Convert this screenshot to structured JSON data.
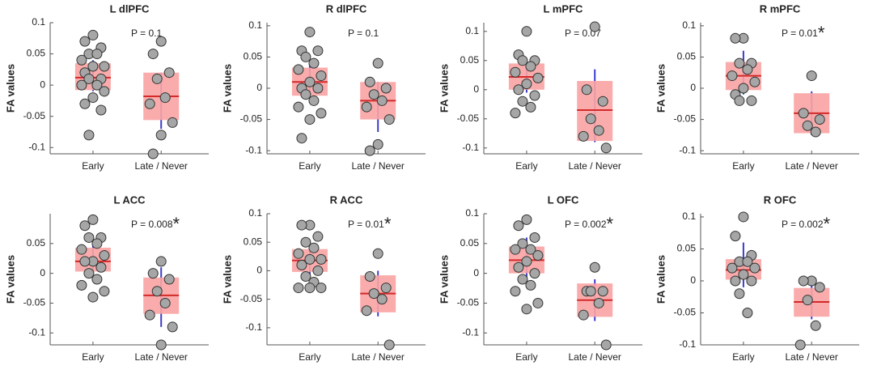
{
  "chart_data": [
    {
      "type": "box",
      "title": "L dlPFC",
      "annotation": "P = 0.1",
      "ylabel": "FA values",
      "categories": [
        "Early",
        "Late / Never"
      ],
      "ylim": [
        -0.11,
        0.1
      ],
      "yticks": [
        0.1,
        0.05,
        0,
        -0.05,
        -0.1
      ],
      "box_color": "#f9a3a3",
      "line_color": "#d42a2a",
      "whisker_color": "#3c3ccc",
      "point_color": "#a6a6a6",
      "groups": [
        {
          "center": 0.012,
          "low": -0.008,
          "high": 0.035,
          "whisker_low": -0.01,
          "whisker_high": 0.04,
          "points": [
            0.08,
            0.07,
            0.06,
            0.05,
            0.05,
            0.04,
            0.03,
            0.03,
            0.02,
            0.01,
            0.01,
            0,
            0,
            -0.01,
            -0.02,
            -0.03,
            -0.04,
            -0.08
          ]
        },
        {
          "center": -0.018,
          "low": -0.056,
          "high": 0.02,
          "whisker_low": -0.07,
          "whisker_high": 0.02,
          "points": [
            0.07,
            0.05,
            0.02,
            0.01,
            -0.02,
            -0.03,
            -0.06,
            -0.08,
            -0.11
          ]
        }
      ]
    },
    {
      "type": "box",
      "title": "R dlPFC",
      "annotation": "P = 0.1",
      "ylabel": "FA values",
      "categories": [
        "Early",
        "Late / Never"
      ],
      "ylim": [
        -0.105,
        0.105
      ],
      "yticks": [
        0.1,
        0.05,
        0,
        -0.05,
        -0.1
      ],
      "box_color": "#f9a3a3",
      "line_color": "#d42a2a",
      "whisker_color": "#3c3ccc",
      "point_color": "#a6a6a6",
      "groups": [
        {
          "center": 0.01,
          "low": -0.012,
          "high": 0.033,
          "whisker_low": -0.02,
          "whisker_high": 0.04,
          "points": [
            0.09,
            0.06,
            0.06,
            0.05,
            0.04,
            0.03,
            0.02,
            0.01,
            0,
            0,
            -0.01,
            -0.02,
            -0.03,
            -0.04,
            -0.05,
            -0.08
          ]
        },
        {
          "center": -0.02,
          "low": -0.05,
          "high": 0.01,
          "whisker_low": -0.07,
          "whisker_high": 0.01,
          "points": [
            0.04,
            0.01,
            0,
            -0.01,
            -0.02,
            -0.03,
            -0.05,
            -0.09,
            -0.1
          ]
        }
      ]
    },
    {
      "type": "box",
      "title": "L mPFC",
      "annotation": "P = 0.07",
      "ylabel": "FA values",
      "categories": [
        "Early",
        "Late / Never"
      ],
      "ylim": [
        -0.11,
        0.115
      ],
      "yticks": [
        0.1,
        0.05,
        0,
        -0.05,
        -0.1
      ],
      "box_color": "#f9a3a3",
      "line_color": "#d42a2a",
      "whisker_color": "#3c3ccc",
      "point_color": "#a6a6a6",
      "groups": [
        {
          "center": 0.022,
          "low": 0,
          "high": 0.045,
          "whisker_low": -0.005,
          "whisker_high": 0.05,
          "points": [
            0.1,
            0.06,
            0.05,
            0.05,
            0.04,
            0.03,
            0.02,
            0.01,
            0,
            -0.01,
            -0.02,
            -0.03,
            -0.04
          ]
        },
        {
          "center": -0.035,
          "low": -0.088,
          "high": 0.015,
          "whisker_low": -0.09,
          "whisker_high": 0.035,
          "points": [
            0.108,
            0,
            -0.02,
            -0.05,
            -0.07,
            -0.08,
            -0.1
          ]
        }
      ]
    },
    {
      "type": "box",
      "title": "R mPFC",
      "annotation": "P = 0.01",
      "marker": "*",
      "ylabel": "FA values",
      "categories": [
        "Early",
        "Late / Never"
      ],
      "ylim": [
        -0.105,
        0.105
      ],
      "yticks": [
        0.1,
        0.05,
        0,
        -0.05,
        -0.1
      ],
      "box_color": "#f9a3a3",
      "line_color": "#d42a2a",
      "whisker_color": "#3c3ccc",
      "point_color": "#a6a6a6",
      "groups": [
        {
          "center": 0.02,
          "low": -0.003,
          "high": 0.042,
          "whisker_low": -0.01,
          "whisker_high": 0.06,
          "points": [
            0.08,
            0.08,
            0.04,
            0.04,
            0.03,
            0.02,
            0.01,
            0,
            -0.01,
            -0.02,
            -0.02
          ]
        },
        {
          "center": -0.04,
          "low": -0.072,
          "high": -0.008,
          "whisker_low": -0.075,
          "whisker_high": -0.005,
          "points": [
            0.02,
            -0.04,
            -0.05,
            -0.06,
            -0.07
          ]
        }
      ]
    },
    {
      "type": "box",
      "title": "L ACC",
      "annotation": "P = 0.008",
      "marker": "*",
      "ylabel": "FA values",
      "categories": [
        "Early",
        "Late / Never"
      ],
      "ylim": [
        -0.12,
        0.1
      ],
      "yticks": [
        0.05,
        0,
        -0.05,
        -0.1
      ],
      "box_color": "#f9a3a3",
      "line_color": "#d42a2a",
      "whisker_color": "#3c3ccc",
      "point_color": "#a6a6a6",
      "groups": [
        {
          "center": 0.02,
          "low": 0.003,
          "high": 0.043,
          "whisker_low": 0,
          "whisker_high": 0.05,
          "points": [
            0.09,
            0.08,
            0.06,
            0.06,
            0.05,
            0.04,
            0.03,
            0.02,
            0.02,
            0.01,
            0,
            -0.01,
            -0.02,
            -0.03,
            -0.04
          ]
        },
        {
          "center": -0.037,
          "low": -0.068,
          "high": -0.007,
          "whisker_low": -0.09,
          "whisker_high": 0.01,
          "points": [
            0.02,
            0,
            -0.01,
            -0.03,
            -0.05,
            -0.07,
            -0.09,
            -0.12
          ]
        }
      ]
    },
    {
      "type": "box",
      "title": "R ACC",
      "annotation": "P = 0.01",
      "marker": "*",
      "ylabel": "FA values",
      "categories": [
        "Early",
        "Late / Never"
      ],
      "ylim": [
        -0.13,
        0.1
      ],
      "yticks": [
        0.1,
        0.05,
        0,
        -0.05,
        -0.1
      ],
      "box_color": "#f9a3a3",
      "line_color": "#d42a2a",
      "whisker_color": "#3c3ccc",
      "point_color": "#a6a6a6",
      "groups": [
        {
          "center": 0.018,
          "low": -0.002,
          "high": 0.038,
          "whisker_low": -0.01,
          "whisker_high": 0.05,
          "points": [
            0.08,
            0.08,
            0.06,
            0.05,
            0.04,
            0.03,
            0.02,
            0.02,
            0.01,
            0,
            -0.01,
            -0.02,
            -0.03,
            -0.03,
            -0.03
          ]
        },
        {
          "center": -0.04,
          "low": -0.073,
          "high": -0.008,
          "whisker_low": -0.08,
          "whisker_high": 0,
          "points": [
            0.03,
            -0.01,
            -0.03,
            -0.04,
            -0.05,
            -0.07,
            -0.13
          ]
        }
      ]
    },
    {
      "type": "box",
      "title": "L OFC",
      "annotation": "P = 0.002",
      "marker": "*",
      "ylabel": "FA values",
      "categories": [
        "Early",
        "Late / Never"
      ],
      "ylim": [
        -0.12,
        0.1
      ],
      "yticks": [
        0.1,
        0.05,
        0,
        -0.05,
        -0.1
      ],
      "box_color": "#f9a3a3",
      "line_color": "#d42a2a",
      "whisker_color": "#3c3ccc",
      "point_color": "#a6a6a6",
      "groups": [
        {
          "center": 0.022,
          "low": 0,
          "high": 0.045,
          "whisker_low": -0.02,
          "whisker_high": 0.06,
          "points": [
            0.09,
            0.08,
            0.06,
            0.05,
            0.04,
            0.04,
            0.03,
            0.02,
            0.01,
            0,
            -0.01,
            -0.02,
            -0.03,
            -0.05,
            -0.06
          ]
        },
        {
          "center": -0.045,
          "low": -0.073,
          "high": -0.017,
          "whisker_low": -0.08,
          "whisker_high": -0.01,
          "points": [
            0.01,
            -0.03,
            -0.03,
            -0.03,
            -0.05,
            -0.07,
            -0.12
          ]
        }
      ]
    },
    {
      "type": "box",
      "title": "R OFC",
      "annotation": "P = 0.002",
      "marker": "*",
      "ylabel": "FA values",
      "categories": [
        "Early",
        "Late / Never"
      ],
      "ylim": [
        -0.1,
        0.105
      ],
      "yticks": [
        0.1,
        0.05,
        0,
        -0.05,
        -0.1
      ],
      "box_color": "#f9a3a3",
      "line_color": "#d42a2a",
      "whisker_color": "#3c3ccc",
      "point_color": "#a6a6a6",
      "groups": [
        {
          "center": 0.017,
          "low": 0.002,
          "high": 0.034,
          "whisker_low": -0.01,
          "whisker_high": 0.06,
          "points": [
            0.1,
            0.07,
            0.04,
            0.03,
            0.03,
            0.02,
            0.02,
            0.01,
            0,
            0,
            -0.02,
            -0.05
          ]
        },
        {
          "center": -0.033,
          "low": -0.056,
          "high": -0.011,
          "whisker_low": -0.06,
          "whisker_high": 0,
          "points": [
            0,
            0,
            -0.01,
            -0.03,
            -0.07,
            -0.1
          ]
        }
      ]
    }
  ]
}
